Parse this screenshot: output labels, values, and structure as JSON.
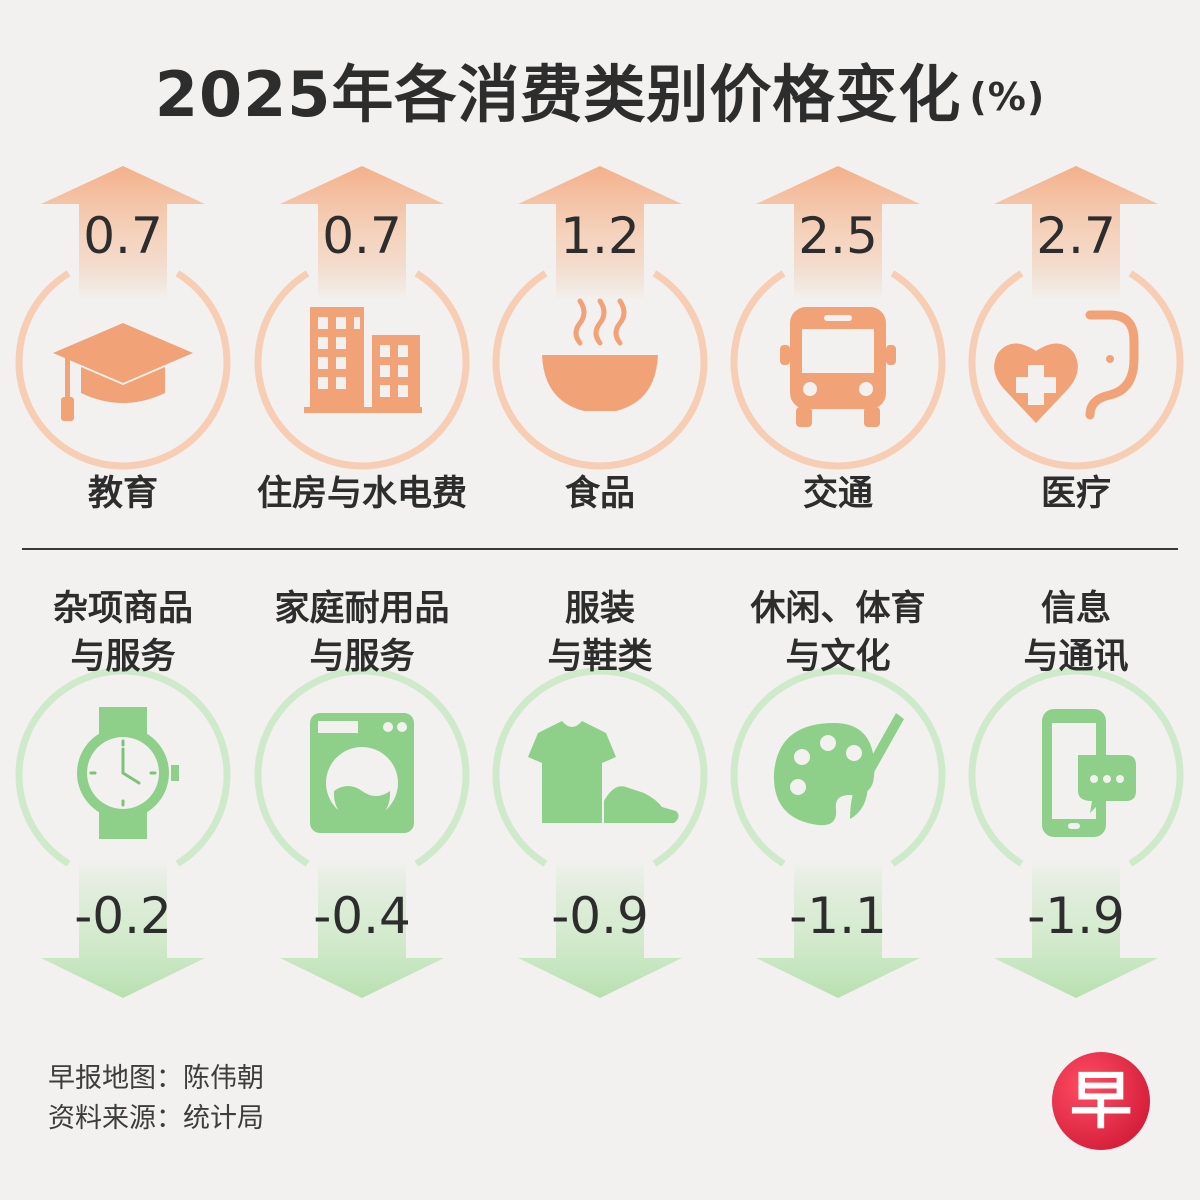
{
  "title": "2025年各消费类别价格变化",
  "unit": "(%)",
  "colors": {
    "up": "#f3b08a",
    "up_icon": "#f2a277",
    "down": "#b8e0b0",
    "down_icon": "#8ed08a"
  },
  "chart_data": {
    "type": "bar",
    "title": "2025年各消费类别价格变化",
    "unit": "%",
    "categories": [
      "教育",
      "住房与水电费",
      "食品",
      "交通",
      "医疗",
      "杂项商品与服务",
      "家庭耐用品与服务",
      "服装与鞋类",
      "休闲、体育与文化",
      "信息与通讯"
    ],
    "values": [
      0.7,
      0.7,
      1.2,
      2.5,
      2.7,
      -0.2,
      -0.4,
      -0.9,
      -1.1,
      -1.9
    ]
  },
  "increases": [
    {
      "label": "教育",
      "value": "0.7",
      "icon": "graduation-cap-icon"
    },
    {
      "label": "住房与水电费",
      "value": "0.7",
      "icon": "buildings-icon"
    },
    {
      "label": "食品",
      "value": "1.2",
      "icon": "food-bowl-icon"
    },
    {
      "label": "交通",
      "value": "2.5",
      "icon": "bus-icon"
    },
    {
      "label": "医疗",
      "value": "2.7",
      "icon": "heart-stethoscope-icon"
    }
  ],
  "decreases": [
    {
      "line1": "杂项商品",
      "line2": "与服务",
      "value": "-0.2",
      "icon": "wristwatch-icon"
    },
    {
      "line1": "家庭耐用品",
      "line2": "与服务",
      "value": "-0.4",
      "icon": "washing-machine-icon"
    },
    {
      "line1": "服装",
      "line2": "与鞋类",
      "value": "-0.9",
      "icon": "shirt-shoe-icon"
    },
    {
      "line1": "休闲、体育",
      "line2": "与文化",
      "value": "-1.1",
      "icon": "palette-brush-icon"
    },
    {
      "line1": "信息",
      "line2": "与通讯",
      "value": "-1.9",
      "icon": "phone-chat-icon"
    }
  ],
  "credits": {
    "map": "早报地图：陈伟朝",
    "source": "资料来源：统计局"
  },
  "logo": "早"
}
